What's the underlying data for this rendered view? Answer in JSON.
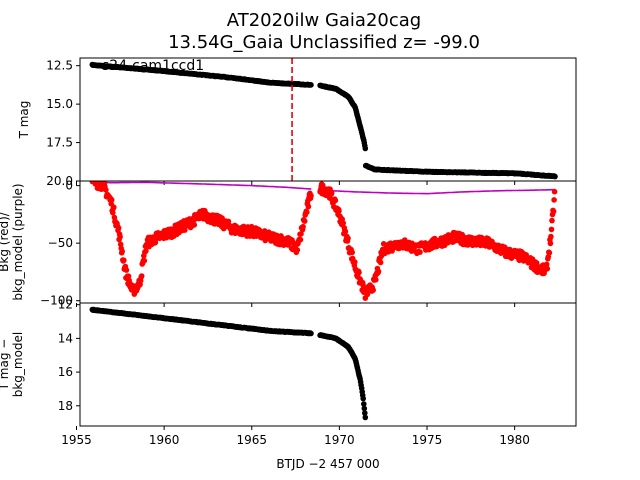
{
  "chart_data": {
    "type": "scatter",
    "title_line1": "AT2020ilw  Gaia20cag",
    "title_line2": "13.54G_Gaia Unclassified z= -99.0",
    "xlabel": "BTJD −2 457 000",
    "xlim": [
      1955.2,
      1983.5
    ],
    "xticks": [
      1955,
      1960,
      1965,
      1970,
      1975,
      1980
    ],
    "vline_x": 1967.3,
    "vline_color": "#e8000b",
    "panels": [
      {
        "id": "tmag",
        "ylabel_lines": [
          "T mag"
        ],
        "ylim": [
          20.0,
          12.0
        ],
        "yticks": [
          12.5,
          15.0,
          17.5,
          20.0
        ],
        "ytick_labels": [
          "12.5",
          "15.0",
          "17.5",
          "20.0"
        ],
        "annotation": "s24-cam1ccd1",
        "series": [
          {
            "color": "#000000",
            "segments": [
              {
                "x0": 1955.9,
                "x1": 1968.4,
                "points": [
                  [
                    1955.9,
                    12.45
                  ],
                  [
                    1960,
                    12.85
                  ],
                  [
                    1964,
                    13.3
                  ],
                  [
                    1966,
                    13.6
                  ],
                  [
                    1968.4,
                    13.75
                  ]
                ]
              },
              {
                "x0": 1968.9,
                "x1": 1971.5,
                "points": [
                  [
                    1968.9,
                    13.8
                  ],
                  [
                    1969.8,
                    14.0
                  ],
                  [
                    1970.5,
                    14.5
                  ],
                  [
                    1970.9,
                    15.2
                  ],
                  [
                    1971.2,
                    16.5
                  ],
                  [
                    1971.4,
                    17.4
                  ],
                  [
                    1971.5,
                    18.0
                  ]
                ]
              },
              {
                "x0": 1971.5,
                "x1": 1982.3,
                "points": [
                  [
                    1971.5,
                    19.0
                  ],
                  [
                    1972,
                    19.25
                  ],
                  [
                    1975,
                    19.4
                  ],
                  [
                    1980,
                    19.5
                  ],
                  [
                    1982.3,
                    19.7
                  ]
                ]
              }
            ]
          }
        ]
      },
      {
        "id": "bkg",
        "ylabel_lines": [
          "Bkg (red)/",
          "bkg_model (purple)"
        ],
        "ylim": [
          -102,
          4
        ],
        "yticks": [
          0,
          -50,
          -100
        ],
        "ytick_labels": [
          "0",
          "−50",
          "−100"
        ],
        "series": [
          {
            "name": "bkg_model",
            "color": "#bf00bf",
            "style": "line",
            "segments": [
              {
                "x0": 1955.9,
                "x1": 1968.4,
                "points": [
                  [
                    1955.9,
                    3.0
                  ],
                  [
                    1957,
                    2.5
                  ],
                  [
                    1959,
                    2.8
                  ],
                  [
                    1962,
                    1.5
                  ],
                  [
                    1965,
                    0.0
                  ],
                  [
                    1967,
                    -1.5
                  ],
                  [
                    1968.4,
                    -3.0
                  ]
                ]
              },
              {
                "x0": 1968.9,
                "x1": 1982.3,
                "points": [
                  [
                    1968.9,
                    -4.0
                  ],
                  [
                    1971,
                    -5.5
                  ],
                  [
                    1973,
                    -6.5
                  ],
                  [
                    1975,
                    -7.0
                  ],
                  [
                    1977,
                    -5.5
                  ],
                  [
                    1979,
                    -4.5
                  ],
                  [
                    1981,
                    -4.0
                  ],
                  [
                    1982.3,
                    -3.5
                  ]
                ]
              }
            ]
          },
          {
            "name": "bkg",
            "color": "#ff0000",
            "style": "scatter",
            "segments": [
              {
                "x0": 1955.9,
                "x1": 1968.4,
                "points": [
                  [
                    1955.9,
                    3
                  ],
                  [
                    1956.5,
                    1
                  ],
                  [
                    1957.0,
                    -15
                  ],
                  [
                    1957.4,
                    -40
                  ],
                  [
                    1957.8,
                    -75
                  ],
                  [
                    1958.2,
                    -92
                  ],
                  [
                    1958.6,
                    -85
                  ],
                  [
                    1959.0,
                    -50
                  ],
                  [
                    1959.6,
                    -45
                  ],
                  [
                    1960.5,
                    -40
                  ],
                  [
                    1961.5,
                    -32
                  ],
                  [
                    1962.2,
                    -25
                  ],
                  [
                    1963.0,
                    -30
                  ],
                  [
                    1964.0,
                    -38
                  ],
                  [
                    1965.0,
                    -40
                  ],
                  [
                    1966.0,
                    -45
                  ],
                  [
                    1967.0,
                    -48
                  ],
                  [
                    1967.6,
                    -55
                  ],
                  [
                    1968.0,
                    -30
                  ],
                  [
                    1968.4,
                    -5
                  ]
                ]
              },
              {
                "x0": 1968.9,
                "x1": 1982.3,
                "points": [
                  [
                    1968.9,
                    -2
                  ],
                  [
                    1969.4,
                    -5
                  ],
                  [
                    1970.0,
                    -25
                  ],
                  [
                    1970.5,
                    -50
                  ],
                  [
                    1971.0,
                    -75
                  ],
                  [
                    1971.5,
                    -95
                  ],
                  [
                    1972.0,
                    -85
                  ],
                  [
                    1972.5,
                    -55
                  ],
                  [
                    1973.5,
                    -50
                  ],
                  [
                    1974.5,
                    -55
                  ],
                  [
                    1975.5,
                    -50
                  ],
                  [
                    1976.5,
                    -45
                  ],
                  [
                    1977.5,
                    -48
                  ],
                  [
                    1978.5,
                    -50
                  ],
                  [
                    1979.5,
                    -58
                  ],
                  [
                    1980.5,
                    -62
                  ],
                  [
                    1981.2,
                    -70
                  ],
                  [
                    1981.8,
                    -75
                  ],
                  [
                    1982.1,
                    -40
                  ],
                  [
                    1982.3,
                    -5
                  ]
                ]
              }
            ]
          }
        ]
      },
      {
        "id": "diff",
        "ylabel_lines": [
          "T mag −",
          "bkg_model"
        ],
        "ylim": [
          19.2,
          11.9
        ],
        "yticks": [
          12,
          14,
          16,
          18
        ],
        "ytick_labels": [
          "12",
          "14",
          "16",
          "18"
        ],
        "series": [
          {
            "color": "#000000",
            "segments": [
              {
                "x0": 1955.9,
                "x1": 1968.4,
                "points": [
                  [
                    1955.9,
                    12.3
                  ],
                  [
                    1960,
                    12.8
                  ],
                  [
                    1964,
                    13.3
                  ],
                  [
                    1966,
                    13.55
                  ],
                  [
                    1968.4,
                    13.7
                  ]
                ]
              },
              {
                "x0": 1968.9,
                "x1": 1971.5,
                "points": [
                  [
                    1968.9,
                    13.8
                  ],
                  [
                    1969.8,
                    14.0
                  ],
                  [
                    1970.5,
                    14.5
                  ],
                  [
                    1970.9,
                    15.2
                  ],
                  [
                    1971.2,
                    16.5
                  ],
                  [
                    1971.35,
                    17.5
                  ],
                  [
                    1971.5,
                    18.9
                  ]
                ]
              }
            ]
          }
        ]
      }
    ]
  }
}
